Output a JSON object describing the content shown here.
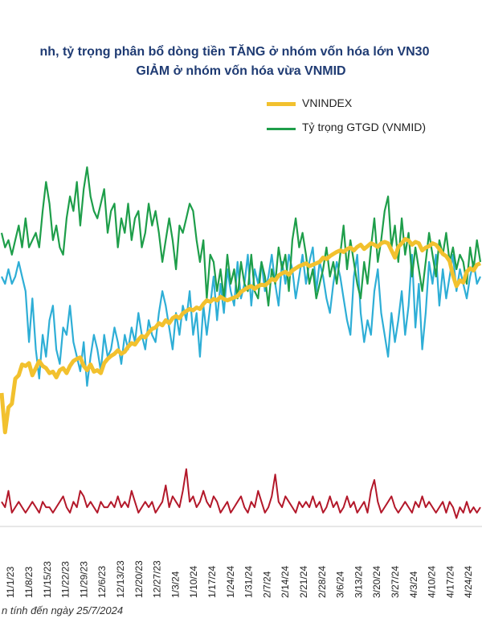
{
  "chart_data": {
    "type": "line",
    "title_line1": "nh, tỷ trọng phân bổ dòng tiền TĂNG ở nhóm vốn hóa lớn VN30",
    "title_line2": "GIẢM ở nhóm vốn hóa vừa VNMID",
    "legend_position": "top-right",
    "grid": false,
    "x_tick_labels": [
      "11/1/23",
      "11/8/23",
      "11/15/23",
      "11/22/23",
      "11/29/23",
      "12/6/23",
      "12/13/23",
      "12/20/23",
      "12/27/23",
      "1/3/24",
      "1/10/24",
      "1/17/24",
      "1/24/24",
      "1/31/24",
      "2/7/24",
      "2/14/24",
      "2/21/24",
      "2/28/24",
      "3/6/24",
      "3/13/24",
      "3/20/24",
      "3/27/24",
      "4/3/24",
      "4/10/24",
      "4/17/24",
      "4/24/24"
    ],
    "series": [
      {
        "name": "VNINDEX",
        "color": "#f2c12e",
        "values": [
          1080,
          1025,
          1060,
          1065,
          1100,
          1105,
          1120,
          1118,
          1122,
          1105,
          1115,
          1125,
          1118,
          1115,
          1108,
          1110,
          1102,
          1112,
          1115,
          1108,
          1118,
          1125,
          1128,
          1130,
          1118,
          1112,
          1120,
          1110,
          1112,
          1108,
          1122,
          1128,
          1132,
          1135,
          1140,
          1135,
          1138,
          1145,
          1150,
          1148,
          1155,
          1160,
          1158,
          1165,
          1170,
          1172,
          1178,
          1175,
          1182,
          1178,
          1185,
          1188,
          1185,
          1192,
          1195,
          1198,
          1196,
          1200,
          1198,
          1205,
          1210,
          1208,
          1212,
          1210,
          1215,
          1212,
          1210,
          1212,
          1214,
          1216,
          1222,
          1225,
          1228,
          1230,
          1226,
          1230,
          1232,
          1231,
          1235,
          1240,
          1238,
          1245,
          1248,
          1250,
          1246,
          1252,
          1255,
          1258,
          1260,
          1262,
          1258,
          1260,
          1262,
          1264,
          1270,
          1268,
          1272,
          1275,
          1278,
          1280,
          1278,
          1282,
          1284,
          1280,
          1285,
          1288,
          1282,
          1286,
          1290,
          1288,
          1285,
          1290,
          1292,
          1290,
          1280,
          1270,
          1285,
          1290,
          1296,
          1294,
          1288,
          1292,
          1290,
          1280,
          1284,
          1286,
          1290,
          1288,
          1282,
          1275,
          1272,
          1265,
          1245,
          1230,
          1238,
          1235,
          1250,
          1255,
          1252,
          1260,
          1262
        ]
      },
      {
        "name": "Tỷ trọng GTGD (VNMID)",
        "color": "#1e9e4a",
        "values": [
          31,
          29,
          30,
          28,
          30,
          32,
          29,
          33,
          29,
          30,
          31,
          29,
          34,
          38,
          35,
          30,
          32,
          29,
          28,
          33,
          36,
          34,
          38,
          32,
          37,
          40,
          36,
          34,
          33,
          35,
          37,
          31,
          34,
          35,
          29,
          33,
          31,
          35,
          30,
          33,
          34,
          29,
          31,
          35,
          32,
          34,
          31,
          27,
          30,
          33,
          30,
          26,
          32,
          31,
          33,
          35,
          34,
          30,
          27,
          30,
          22,
          28,
          27,
          23,
          26,
          22,
          28,
          24,
          26,
          22,
          27,
          24,
          23,
          28,
          23,
          22,
          27,
          25,
          21,
          26,
          24,
          29,
          26,
          28,
          23,
          30,
          33,
          29,
          31,
          28,
          24,
          26,
          22,
          24,
          26,
          29,
          25,
          27,
          24,
          28,
          32,
          26,
          30,
          27,
          24,
          22,
          27,
          24,
          29,
          33,
          27,
          30,
          34,
          36,
          29,
          32,
          27,
          33,
          28,
          31,
          25,
          29,
          26,
          23,
          27,
          31,
          28,
          25,
          30,
          28,
          31,
          27,
          29,
          26,
          28,
          27,
          24,
          29,
          26,
          30,
          27
        ]
      },
      {
        "name": "",
        "color": "#2eaed6",
        "values": [
          25,
          24,
          26,
          24,
          25,
          27,
          25,
          23,
          16,
          22,
          15,
          11,
          17,
          14,
          19,
          21,
          15,
          13,
          18,
          17,
          21,
          16,
          14,
          12,
          16,
          10,
          14,
          17,
          15,
          12,
          17,
          14,
          15,
          18,
          16,
          13,
          17,
          15,
          18,
          16,
          20,
          17,
          15,
          19,
          17,
          16,
          20,
          23,
          21,
          18,
          15,
          20,
          17,
          21,
          19,
          23,
          17,
          20,
          14,
          21,
          17,
          21,
          25,
          19,
          24,
          20,
          26,
          23,
          21,
          27,
          22,
          24,
          28,
          21,
          26,
          24,
          27,
          23,
          25,
          28,
          24,
          21,
          27,
          24,
          28,
          26,
          22,
          25,
          28,
          24,
          27,
          29,
          23,
          27,
          25,
          22,
          20,
          24,
          27,
          25,
          22,
          19,
          17,
          25,
          28,
          20,
          16,
          19,
          17,
          23,
          26,
          20,
          17,
          14,
          20,
          16,
          19,
          23,
          17,
          21,
          28,
          18,
          24,
          15,
          20,
          27,
          24,
          28,
          21,
          26,
          22,
          25,
          28,
          23,
          26,
          24,
          22,
          25,
          27,
          24,
          25
        ]
      },
      {
        "name": "",
        "color": "#b3182a",
        "values": [
          6,
          5,
          8,
          4,
          5,
          6,
          5,
          4,
          5,
          6,
          5,
          4,
          6,
          5,
          5,
          4,
          5,
          6,
          7,
          5,
          4,
          6,
          5,
          8,
          7,
          5,
          6,
          5,
          4,
          6,
          5,
          5,
          6,
          5,
          7,
          5,
          6,
          5,
          8,
          6,
          4,
          5,
          6,
          5,
          6,
          4,
          5,
          6,
          9,
          5,
          7,
          6,
          5,
          8,
          12,
          6,
          7,
          5,
          6,
          8,
          6,
          5,
          7,
          6,
          4,
          5,
          6,
          4,
          5,
          6,
          7,
          5,
          4,
          6,
          5,
          8,
          6,
          4,
          5,
          7,
          11,
          6,
          5,
          7,
          6,
          5,
          4,
          6,
          5,
          6,
          5,
          7,
          5,
          6,
          4,
          5,
          7,
          5,
          6,
          4,
          5,
          7,
          5,
          6,
          4,
          5,
          6,
          4,
          8,
          10,
          6,
          4,
          5,
          6,
          7,
          5,
          4,
          5,
          6,
          5,
          4,
          6,
          5,
          7,
          5,
          6,
          5,
          4,
          5,
          6,
          4,
          6,
          5,
          3,
          5,
          4,
          6,
          4,
          5,
          4,
          5
        ]
      }
    ],
    "footnote": "n tính đến ngày 25/7/2024"
  }
}
